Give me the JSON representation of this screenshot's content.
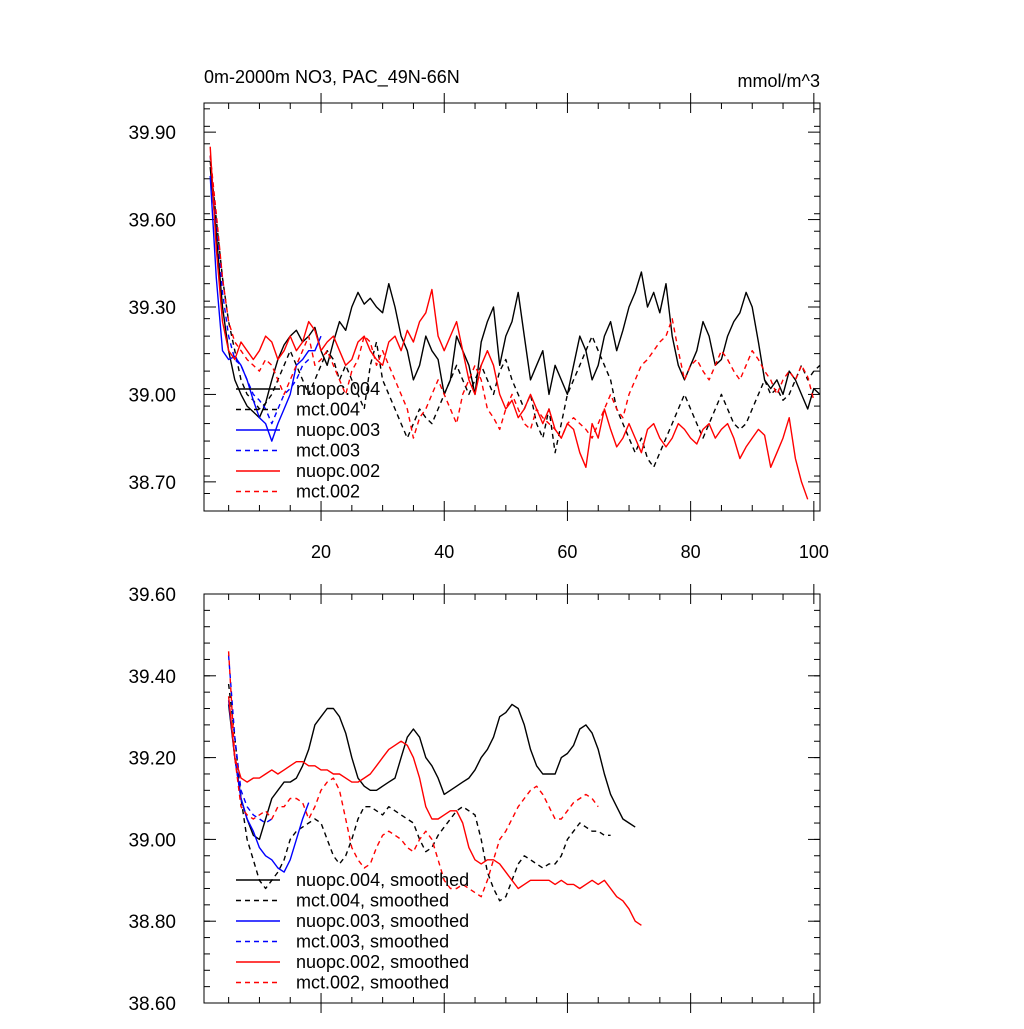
{
  "chart_data": [
    {
      "type": "line",
      "title": "0m-2000m NO3, PAC_49N-66N",
      "units": "mmol/m^3",
      "xlabel": "",
      "ylabel": "",
      "xlim": [
        1,
        101
      ],
      "ylim": [
        38.6,
        40.0
      ],
      "xticks": [
        20,
        40,
        60,
        80,
        100
      ],
      "xtick_labels": [
        "20",
        "40",
        "60",
        "80",
        "100"
      ],
      "yticks": [
        38.7,
        39.0,
        39.3,
        39.6,
        39.9
      ],
      "ytick_labels": [
        "38.70",
        "39.00",
        "39.30",
        "39.60",
        "39.90"
      ],
      "legend_position": "lower-left",
      "series": [
        {
          "name": "nuopc.004",
          "color": "#000000",
          "dash": "solid",
          "x_start": 2,
          "values": [
            39.78,
            39.55,
            39.3,
            39.15,
            39.05,
            39.0,
            38.96,
            38.94,
            38.92,
            38.97,
            39.05,
            39.12,
            39.17,
            39.2,
            39.22,
            39.18,
            39.2,
            39.23,
            39.15,
            39.1,
            39.18,
            39.25,
            39.22,
            39.3,
            39.35,
            39.31,
            39.33,
            39.3,
            39.28,
            39.38,
            39.3,
            39.2,
            39.15,
            39.05,
            39.1,
            39.2,
            39.15,
            39.12,
            39.0,
            39.05,
            39.2,
            39.15,
            39.1,
            39.0,
            39.18,
            39.25,
            39.3,
            39.1,
            39.2,
            39.25,
            39.35,
            39.2,
            39.05,
            39.1,
            39.15,
            39.0,
            39.1,
            39.05,
            39.0,
            39.1,
            39.2,
            39.15,
            39.05,
            39.1,
            39.2,
            39.25,
            39.15,
            39.22,
            39.3,
            39.35,
            39.42,
            39.3,
            39.35,
            39.28,
            39.38,
            39.2,
            39.1,
            39.05,
            39.1,
            39.15,
            39.25,
            39.2,
            39.1,
            39.12,
            39.2,
            39.25,
            39.28,
            39.35,
            39.3,
            39.18,
            39.05,
            39.02,
            39.05,
            39.0,
            39.08,
            39.05,
            39.0,
            38.95,
            39.02,
            39.0
          ]
        },
        {
          "name": "mct.004",
          "color": "#000000",
          "dash": "dashed",
          "x_start": 2,
          "values": [
            39.8,
            39.6,
            39.4,
            39.25,
            39.15,
            39.05,
            39.0,
            38.98,
            38.95,
            38.97,
            39.0,
            39.05,
            39.1,
            39.15,
            39.1,
            39.05,
            39.0,
            39.05,
            39.1,
            39.15,
            39.12,
            39.05,
            39.1,
            39.05,
            39.0,
            38.95,
            39.1,
            39.18,
            39.05,
            39.0,
            38.95,
            38.9,
            38.85,
            38.9,
            38.95,
            38.92,
            38.9,
            38.95,
            39.0,
            39.05,
            39.1,
            39.05,
            39.0,
            39.05,
            39.1,
            39.05,
            39.0,
            39.08,
            39.12,
            39.05,
            39.0,
            38.95,
            39.0,
            38.9,
            38.85,
            38.95,
            38.8,
            38.9,
            39.0,
            39.05,
            39.1,
            39.15,
            39.2,
            39.15,
            39.1,
            39.05,
            38.95,
            38.9,
            38.85,
            38.8,
            38.85,
            38.78,
            38.75,
            38.8,
            38.85,
            38.9,
            38.95,
            39.0,
            38.95,
            38.9,
            38.85,
            38.9,
            38.95,
            39.0,
            38.95,
            38.9,
            38.88,
            38.9,
            38.95,
            39.0,
            39.05,
            39.0,
            39.02,
            38.98,
            39.0,
            39.05,
            39.1,
            39.05,
            39.08,
            39.1
          ]
        },
        {
          "name": "nuopc.003",
          "color": "#0000ff",
          "dash": "solid",
          "x_start": 2,
          "values": [
            39.75,
            39.4,
            39.15,
            39.12,
            39.13,
            39.1,
            39.05,
            38.98,
            38.92,
            38.9,
            38.84,
            38.9,
            38.95,
            39.0,
            39.1,
            39.12,
            39.15,
            39.15,
            39.2
          ]
        },
        {
          "name": "mct.003",
          "color": "#0000ff",
          "dash": "dashed",
          "x_start": 2,
          "values": [
            39.82,
            39.6,
            39.35,
            39.2,
            39.12,
            39.1,
            39.05,
            39.0,
            38.98,
            38.95,
            38.9,
            38.95,
            39.0,
            39.02,
            39.05,
            39.1,
            39.12
          ]
        },
        {
          "name": "nuopc.002",
          "color": "#ff0000",
          "dash": "solid",
          "x_start": 2,
          "values": [
            39.85,
            39.5,
            39.25,
            39.15,
            39.12,
            39.18,
            39.15,
            39.12,
            39.15,
            39.2,
            39.18,
            39.12,
            39.15,
            39.2,
            39.15,
            39.18,
            39.25,
            39.22,
            39.15,
            39.18,
            39.2,
            39.15,
            39.1,
            39.12,
            39.18,
            39.2,
            39.15,
            39.12,
            39.1,
            39.18,
            39.2,
            39.15,
            39.22,
            39.18,
            39.25,
            39.28,
            39.36,
            39.2,
            39.15,
            39.2,
            39.25,
            39.15,
            39.05,
            39.0,
            39.1,
            39.15,
            39.1,
            39.0,
            38.95,
            38.98,
            38.92,
            38.95,
            39.0,
            38.95,
            38.9,
            38.95,
            38.88,
            38.85,
            38.9,
            38.88,
            38.8,
            38.75,
            38.9,
            38.85,
            38.95,
            38.88,
            38.82,
            38.85,
            38.9,
            38.85,
            38.8,
            38.88,
            38.9,
            38.85,
            38.82,
            38.85,
            38.9,
            38.88,
            38.85,
            38.83,
            38.88,
            38.9,
            38.85,
            38.88,
            38.9,
            38.85,
            38.78,
            38.82,
            38.85,
            38.88,
            38.86,
            38.75,
            38.8,
            38.85,
            38.92,
            38.78,
            38.7,
            38.64
          ]
        },
        {
          "name": "mct.002",
          "color": "#ff0000",
          "dash": "dashed",
          "x_start": 2,
          "values": [
            39.82,
            39.62,
            39.4,
            39.25,
            39.18,
            39.15,
            39.12,
            39.1,
            39.08,
            39.12,
            39.1,
            39.05,
            39.0,
            39.05,
            39.1,
            39.15,
            39.2,
            39.1,
            39.12,
            39.15,
            39.1,
            39.05,
            39.0,
            39.08,
            39.12,
            39.2,
            39.18,
            39.1,
            39.15,
            39.1,
            39.05,
            39.0,
            38.95,
            38.85,
            38.92,
            38.95,
            39.0,
            39.05,
            39.0,
            38.95,
            38.9,
            39.0,
            39.05,
            39.1,
            39.05,
            38.95,
            38.92,
            38.88,
            38.95,
            39.0,
            38.95,
            38.9,
            38.88,
            38.95,
            38.92,
            38.9,
            38.88,
            38.85,
            38.9,
            38.92,
            38.9,
            38.88,
            38.85,
            38.9,
            38.95,
            39.0,
            38.95,
            38.92,
            39.0,
            39.05,
            39.1,
            39.12,
            39.15,
            39.18,
            39.2,
            39.26,
            39.15,
            39.05,
            39.1,
            39.12,
            39.08,
            39.05,
            39.1,
            39.15,
            39.12,
            39.08,
            39.05,
            39.1,
            39.15,
            39.12,
            39.08,
            39.05,
            39.0,
            39.05,
            39.08,
            39.05,
            39.1,
            39.06,
            38.98
          ]
        }
      ]
    },
    {
      "type": "line",
      "title": "",
      "xlabel": "",
      "ylabel": "",
      "xlim": [
        1,
        101
      ],
      "ylim": [
        38.6,
        39.6
      ],
      "xticks": [
        20,
        40,
        60,
        80,
        100
      ],
      "yticks": [
        38.6,
        38.8,
        39.0,
        39.2,
        39.4,
        39.6
      ],
      "ytick_labels": [
        "38.60",
        "38.80",
        "39.00",
        "39.20",
        "39.40",
        "39.60"
      ],
      "legend_position": "lower-left",
      "series": [
        {
          "name": "nuopc.004, smoothed",
          "color": "#000000",
          "dash": "solid",
          "x_start": 5,
          "values": [
            39.33,
            39.2,
            39.1,
            39.05,
            39.01,
            39.0,
            39.05,
            39.1,
            39.12,
            39.14,
            39.14,
            39.15,
            39.18,
            39.22,
            39.28,
            39.3,
            39.32,
            39.32,
            39.3,
            39.26,
            39.2,
            39.15,
            39.13,
            39.12,
            39.12,
            39.13,
            39.14,
            39.15,
            39.2,
            39.25,
            39.27,
            39.25,
            39.2,
            39.18,
            39.15,
            39.11,
            39.12,
            39.13,
            39.14,
            39.15,
            39.17,
            39.2,
            39.22,
            39.25,
            39.3,
            39.31,
            39.33,
            39.32,
            39.28,
            39.22,
            39.18,
            39.16,
            39.16,
            39.16,
            39.2,
            39.21,
            39.23,
            39.27,
            39.28,
            39.26,
            39.22,
            39.16,
            39.11,
            39.08,
            39.05,
            39.04,
            39.03
          ]
        },
        {
          "name": "mct.004, smoothed",
          "color": "#000000",
          "dash": "dashed",
          "x_start": 5,
          "values": [
            39.38,
            39.25,
            39.1,
            39.0,
            38.95,
            38.9,
            38.88,
            38.9,
            38.92,
            38.95,
            39.0,
            39.02,
            39.03,
            39.04,
            39.05,
            39.04,
            39.0,
            38.96,
            38.94,
            38.96,
            39.0,
            39.05,
            39.08,
            39.08,
            39.07,
            39.06,
            39.08,
            39.07,
            39.06,
            39.05,
            39.04,
            39.0,
            38.97,
            38.98,
            39.01,
            39.03,
            39.05,
            39.07,
            39.08,
            39.07,
            39.06,
            39.0,
            38.92,
            38.88,
            38.85,
            38.86,
            38.9,
            38.94,
            38.96,
            38.95,
            38.94,
            38.93,
            38.94,
            38.94,
            38.96,
            39.0,
            39.02,
            39.04,
            39.03,
            39.02,
            39.02,
            39.01,
            39.01
          ]
        },
        {
          "name": "nuopc.003, smoothed",
          "color": "#0000ff",
          "dash": "solid",
          "x_start": 5,
          "values": [
            39.34,
            39.2,
            39.1,
            39.05,
            39.02,
            38.98,
            38.96,
            38.95,
            38.93,
            38.92,
            38.95,
            39.0,
            39.05,
            39.09
          ]
        },
        {
          "name": "mct.003, smoothed",
          "color": "#0000ff",
          "dash": "dashed",
          "x_start": 5,
          "values": [
            39.45,
            39.25,
            39.12,
            39.08,
            39.06,
            39.05,
            39.04,
            39.05
          ]
        },
        {
          "name": "nuopc.002, smoothed",
          "color": "#ff0000",
          "dash": "solid",
          "x_start": 5,
          "values": [
            39.35,
            39.2,
            39.15,
            39.14,
            39.15,
            39.15,
            39.16,
            39.17,
            39.16,
            39.17,
            39.18,
            39.19,
            39.19,
            39.18,
            39.18,
            39.17,
            39.17,
            39.16,
            39.16,
            39.15,
            39.14,
            39.14,
            39.15,
            39.16,
            39.18,
            39.2,
            39.22,
            39.23,
            39.24,
            39.23,
            39.2,
            39.15,
            39.08,
            39.05,
            39.05,
            39.06,
            39.07,
            39.07,
            39.04,
            38.98,
            38.95,
            38.94,
            38.95,
            38.95,
            38.94,
            38.92,
            38.9,
            38.88,
            38.89,
            38.9,
            38.9,
            38.9,
            38.9,
            38.89,
            38.9,
            38.89,
            38.89,
            38.88,
            38.89,
            38.9,
            38.89,
            38.9,
            38.88,
            38.86,
            38.85,
            38.83,
            38.8,
            38.79
          ]
        },
        {
          "name": "mct.002, smoothed",
          "color": "#ff0000",
          "dash": "dashed",
          "x_start": 5,
          "values": [
            39.46,
            39.2,
            39.08,
            39.06,
            39.05,
            39.06,
            39.07,
            39.05,
            39.08,
            39.08,
            39.1,
            39.1,
            39.09,
            39.05,
            39.08,
            39.12,
            39.14,
            39.15,
            39.12,
            39.05,
            38.98,
            38.95,
            38.93,
            38.94,
            38.98,
            39.01,
            39.02,
            39.01,
            39.0,
            38.98,
            38.97,
            39.0,
            39.02,
            39.0,
            38.95,
            38.9,
            38.88,
            38.88,
            38.89,
            38.88,
            38.87,
            38.86,
            38.9,
            38.95,
            39.0,
            39.02,
            39.05,
            39.08,
            39.1,
            39.12,
            39.13,
            39.11,
            39.08,
            39.05,
            39.05,
            39.07,
            39.09,
            39.1,
            39.11,
            39.1,
            39.08
          ]
        }
      ]
    }
  ]
}
